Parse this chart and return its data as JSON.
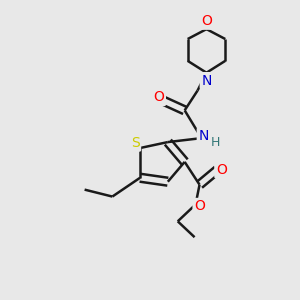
{
  "background_color": "#e8e8e8",
  "atom_colors": {
    "C": "#000000",
    "N": "#0000cc",
    "O": "#ff0000",
    "S": "#cccc00"
  },
  "bond_color": "#1a1a1a",
  "bond_width": 1.8,
  "font_size": 10
}
